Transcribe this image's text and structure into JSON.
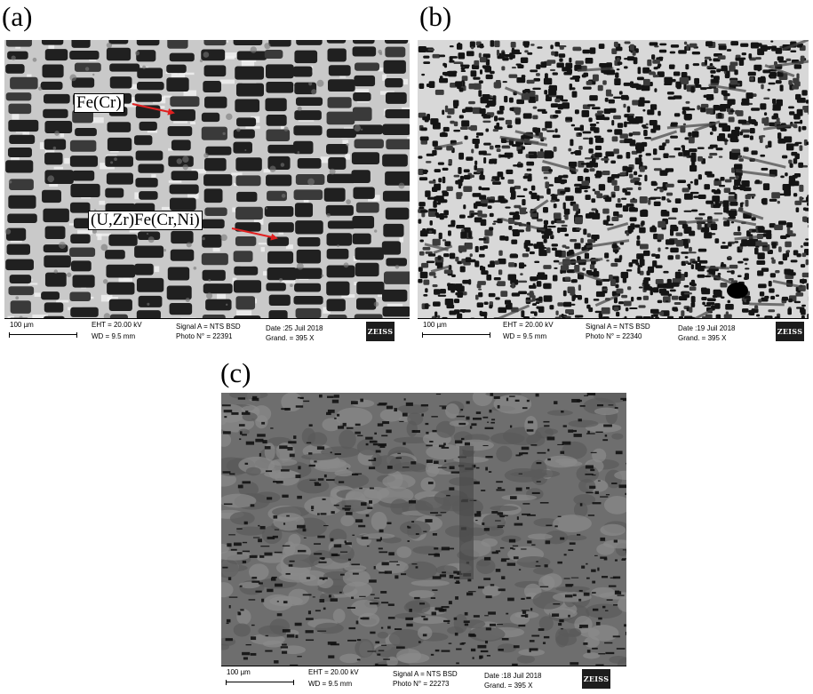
{
  "panels": {
    "a": {
      "label": "(a)",
      "annotations": {
        "fe_cr": "Fe(Cr)",
        "uzr_phase": "(U,Zr)Fe(Cr,Ni)"
      },
      "databar": {
        "scale": "100 µm",
        "eht": "EHT = 20.00 kV",
        "wd": "WD =  9.5 mm",
        "signal": "Signal A = NTS BSD",
        "photo": "Photo N° = 22391",
        "date": "Date :25 Juil 2018",
        "mag": "Grand. =    395 X",
        "logo": "ZEISS"
      }
    },
    "b": {
      "label": "(b)",
      "databar": {
        "scale": "100 µm",
        "eht": "EHT = 20.00 kV",
        "wd": "WD =  9.5 mm",
        "signal": "Signal A = NTS BSD",
        "photo": "Photo N° = 22340",
        "date": "Date :19 Juil 2018",
        "mag": "Grand. =    395 X",
        "logo": "ZEISS"
      }
    },
    "c": {
      "label": "(c)",
      "databar": {
        "scale": "100 µm",
        "eht": "EHT = 20.00 kV",
        "wd": "WD =  9.5 mm",
        "signal": "Signal A = NTS BSD",
        "photo": "Photo N° = 22273",
        "date": "Date :18 Juil 2018",
        "mag": "Grand. =    395 X",
        "logo": "ZEISS"
      }
    }
  },
  "colors": {
    "arrow": "#e02020",
    "frame": "#000000"
  }
}
